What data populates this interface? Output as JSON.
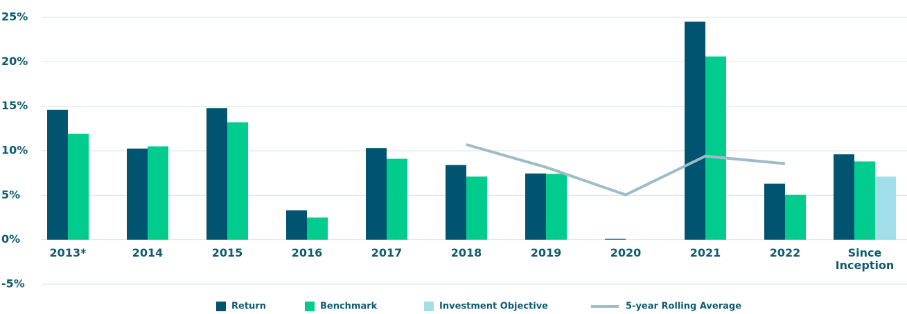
{
  "chart_data": {
    "type": "bar",
    "categories": [
      "2013*",
      "2014",
      "2015",
      "2016",
      "2017",
      "2018",
      "2019",
      "2020",
      "2021",
      "2022",
      "Since Inception"
    ],
    "series": [
      {
        "name": "Return",
        "color": "#005470",
        "values": [
          14.6,
          10.25,
          14.8,
          3.3,
          10.3,
          8.4,
          7.45,
          0.1,
          24.5,
          6.3,
          9.6
        ]
      },
      {
        "name": "Benchmark",
        "color": "#00cc8e",
        "values": [
          11.9,
          10.5,
          13.2,
          2.5,
          9.1,
          7.1,
          7.4,
          0,
          20.6,
          5.05,
          8.8
        ]
      },
      {
        "name": "Investment Objective",
        "color": "#a0dfea",
        "values": [
          null,
          null,
          null,
          null,
          null,
          null,
          null,
          null,
          null,
          null,
          7.1
        ]
      },
      {
        "name": "5-year Rolling Average",
        "color": "#9dbcc5",
        "type": "line",
        "values": [
          null,
          null,
          null,
          null,
          null,
          10.7,
          8.15,
          5.05,
          9.4,
          8.55,
          null
        ]
      }
    ],
    "ylim": [
      -5,
      25
    ],
    "yticks": [
      {
        "value": -5,
        "label": "-5%"
      },
      {
        "value": 0,
        "label": "0%"
      },
      {
        "value": 5,
        "label": "5%"
      },
      {
        "value": 10,
        "label": "10%"
      },
      {
        "value": 15,
        "label": "15%"
      },
      {
        "value": 20,
        "label": "20%"
      },
      {
        "value": 25,
        "label": "25%"
      }
    ],
    "grid": true,
    "legend": "bottom"
  }
}
